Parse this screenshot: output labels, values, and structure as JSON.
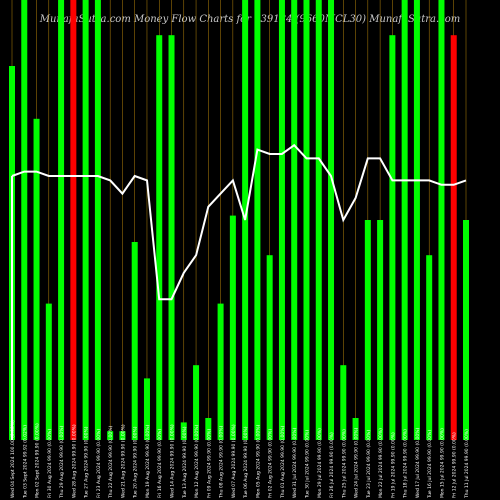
{
  "title": "MunafaSutra.com Money Flow Charts for 939184 (9660MCL30) MunafaSutra.com",
  "chart_data": {
    "type": "bar",
    "title": "MunafaSutra.com Money Flow Charts for 939184 (9660MCL30) MunafaSutra.com",
    "ylim": [
      0,
      100
    ],
    "colors": {
      "up": "#00ff00",
      "down": "#ff0000",
      "line": "#ffffff",
      "grid": "#b8860b",
      "background": "#000000"
    },
    "categories": [
      "Wed 04 Sept 2024 100.00 (0.08%)",
      "Tue 03 Sept 2024 99.92 (0.02%)",
      "Mon 02 Sept 2024 99.90 (0.00%)",
      "Fri 30 Aug 2024 99.90 (0.00%)",
      "Thu 29 Aug 2024 99.90 (0.00%)",
      "Wed 28 Aug 2024 99.90 (0.00%)",
      "Tue 27 Aug 2024 99.90 (0.00%)",
      "Fri 23 Aug 2024 99.90 (0.00%)",
      "Thu 22 Aug 2024 99.90 (0.00%)",
      "Wed 21 Aug 2024 99.90 (0.00%)",
      "Tue 20 Aug 2024 99.90 (0.00%)",
      "Mon 19 Aug 2024 99.90 (0.00%)",
      "Fri 16 Aug 2024 99.90 (0.00%)",
      "Wed 14 Aug 2024 99.90 (0.00%)",
      "Tue 13 Aug 2024 99.90 (0.00%)",
      "Mon 12 Aug 2024 99.90 (0.00%)",
      "Fri 09 Aug 2024 99.90 (0.00%)",
      "Thu 08 Aug 2024 99.90 (0.00%)",
      "Wed 07 Aug 2024 99.90 (0.00%)",
      "Tue 06 Aug 2024 99.90 (0.00%)",
      "Mon 05 Aug 2024 99.90 (0.00%)",
      "Fri 02 Aug 2024 99.90 (0.00%)",
      "Thu 01 Aug 2024 99.90 (0.00%)",
      "Wed 31 Jul 2024 99.90 (0.00%)",
      "Tue 30 Jul 2024 99.90 (0.00%)",
      "Mon 29 Jul 2024 99.90 (0.00%)",
      "Fri 26 Jul 2024 99.90 (0.00%)",
      "Thu 25 Jul 2024 99.90 (0.00%)",
      "Wed 24 Jul 2024 99.90 (0.00%)",
      "Tue 23 Jul 2024 99.90 (0.00%)",
      "Mon 22 Jul 2024 99.90 (0.00%)",
      "Fri 19 Jul 2024 99.90 (0.00%)",
      "Thu 18 Jul 2024 99.90 (0.00%)",
      "Wed 17 Jul 2024 99.90 (0.00%)",
      "Tue 16 Jul 2024 99.90 (0.00%)",
      "Mon 15 Jul 2024 99.90 (0.00%)",
      "Fri 12 Jul 2024 99.90 (0.00%)",
      "Thu 11 Jul 2024 99.90 (0.00%)"
    ],
    "values": [
      85,
      100,
      73,
      31,
      100,
      100,
      100,
      100,
      2,
      2,
      45,
      14,
      92,
      92,
      4,
      17,
      5,
      31,
      51,
      100,
      100,
      42,
      100,
      100,
      100,
      100,
      100,
      17,
      5,
      50,
      50,
      92,
      100,
      100,
      42,
      100,
      92,
      50
    ],
    "directions": [
      "up",
      "up",
      "up",
      "up",
      "up",
      "down",
      "up",
      "up",
      "up",
      "up",
      "up",
      "up",
      "up",
      "up",
      "up",
      "up",
      "up",
      "up",
      "up",
      "up",
      "up",
      "up",
      "up",
      "up",
      "up",
      "up",
      "up",
      "up",
      "up",
      "up",
      "up",
      "up",
      "up",
      "up",
      "up",
      "up",
      "down",
      "up"
    ],
    "line_values": [
      60,
      61,
      61,
      60,
      60,
      60,
      60,
      60,
      59,
      56,
      60,
      59,
      32,
      32,
      38,
      42,
      53,
      56,
      59,
      50,
      66,
      65,
      65,
      67,
      64,
      64,
      60,
      50,
      55,
      64,
      64,
      59,
      59,
      59,
      59,
      58,
      58,
      59
    ],
    "grid": true
  }
}
